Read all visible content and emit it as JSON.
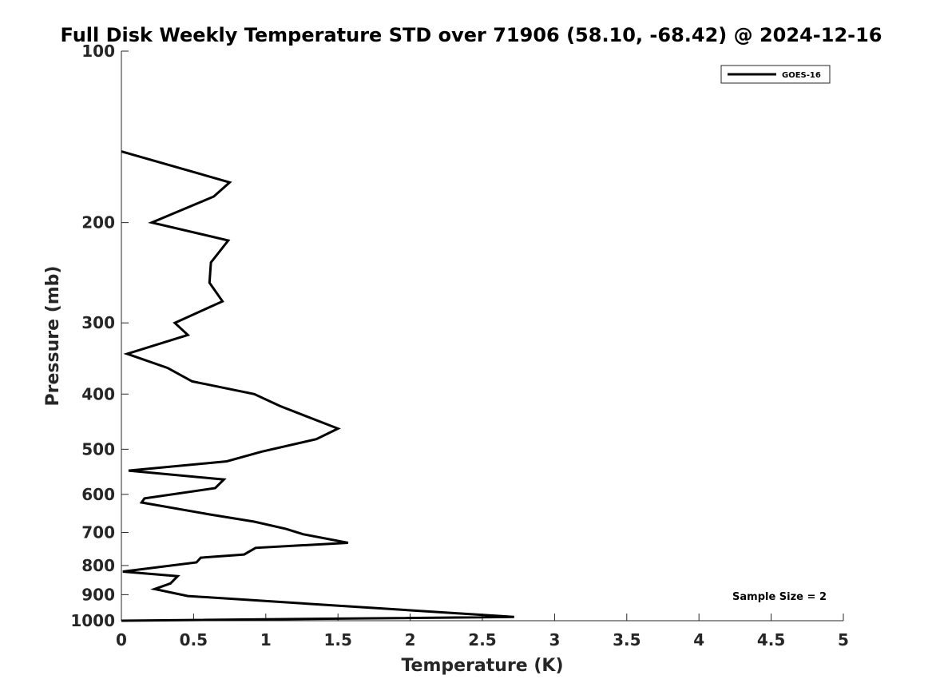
{
  "chart_data": {
    "type": "line",
    "title": "Full Disk Weekly Temperature STD over 71906 (58.10, -68.42) @ 2024-12-16",
    "xlabel": "Temperature (K)",
    "ylabel": "Pressure (mb)",
    "xlim": [
      0,
      5
    ],
    "ylim": [
      100,
      1000
    ],
    "yscale": "log",
    "y_reversed": true,
    "grid": false,
    "legend_placement": "top-right",
    "x_ticks": [
      0,
      0.5,
      1,
      1.5,
      2,
      2.5,
      3,
      3.5,
      4,
      4.5,
      5
    ],
    "x_tick_labels": [
      "0",
      "0.5",
      "1",
      "1.5",
      "2",
      "2.5",
      "3",
      "3.5",
      "4",
      "4.5",
      "5"
    ],
    "y_ticks": [
      100,
      200,
      300,
      400,
      500,
      600,
      700,
      800,
      900,
      1000
    ],
    "y_tick_labels": [
      "100",
      "200",
      "300",
      "400",
      "500",
      "600",
      "700",
      "800",
      "900",
      "1000"
    ],
    "series": [
      {
        "name": "GOES-16",
        "color": "#000000",
        "x": [
          0.0,
          0.75,
          0.64,
          0.21,
          0.74,
          0.62,
          0.61,
          0.7,
          0.37,
          0.46,
          0.04,
          0.32,
          0.49,
          0.92,
          1.1,
          1.5,
          1.35,
          0.97,
          0.73,
          0.05,
          0.71,
          0.65,
          0.16,
          0.14,
          0.6,
          0.92,
          1.14,
          1.26,
          1.57,
          0.93,
          0.85,
          0.55,
          0.52,
          0.01,
          0.39,
          0.34,
          0.23,
          0.46,
          2.72,
          0.0
        ],
        "y": [
          150,
          170,
          180,
          200,
          215,
          235,
          255,
          275,
          300,
          315,
          340,
          360,
          380,
          400,
          420,
          460,
          480,
          505,
          525,
          545,
          565,
          585,
          610,
          620,
          650,
          670,
          690,
          705,
          730,
          745,
          765,
          775,
          790,
          820,
          835,
          860,
          880,
          905,
          985,
          1000
        ]
      }
    ],
    "annotation": "Sample Size = 2"
  }
}
